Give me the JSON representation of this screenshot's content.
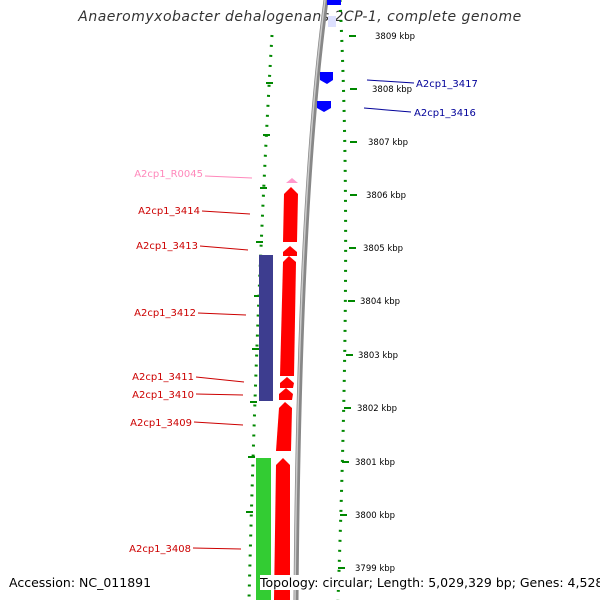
{
  "title": "Anaeromyxobacter dehalogenans 2CP-1, complete genome",
  "footer": {
    "accession": "Accession: NC_011891",
    "summary": "Topology: circular; Length: 5,029,329 bp; Genes: 4,528"
  },
  "colors": {
    "forward_gene": "#ff0000",
    "reverse_gene": "#0000ff",
    "rna": "#ff99cc",
    "gene_label": "#cc0000",
    "reverse_label": "#000099",
    "rna_label": "#ff88bb",
    "track_purple": "#3d3d8f",
    "track_green": "#33cc33",
    "tick_green": "#008800",
    "backbone": "#888888"
  },
  "scale_labels": [
    "3809 kbp",
    "3808 kbp",
    "3807 kbp",
    "3806 kbp",
    "3805 kbp",
    "3804 kbp",
    "3803 kbp",
    "3802 kbp",
    "3801 kbp",
    "3800 kbp",
    "3799 kbp"
  ],
  "gene_labels": {
    "left": [
      "A2cp1_R0045",
      "A2cp1_3414",
      "A2cp1_3413",
      "A2cp1_3412",
      "A2cp1_3411",
      "A2cp1_3410",
      "A2cp1_3409",
      "A2cp1_3408"
    ],
    "right": [
      "A2cp1_3417",
      "A2cp1_3416"
    ]
  }
}
